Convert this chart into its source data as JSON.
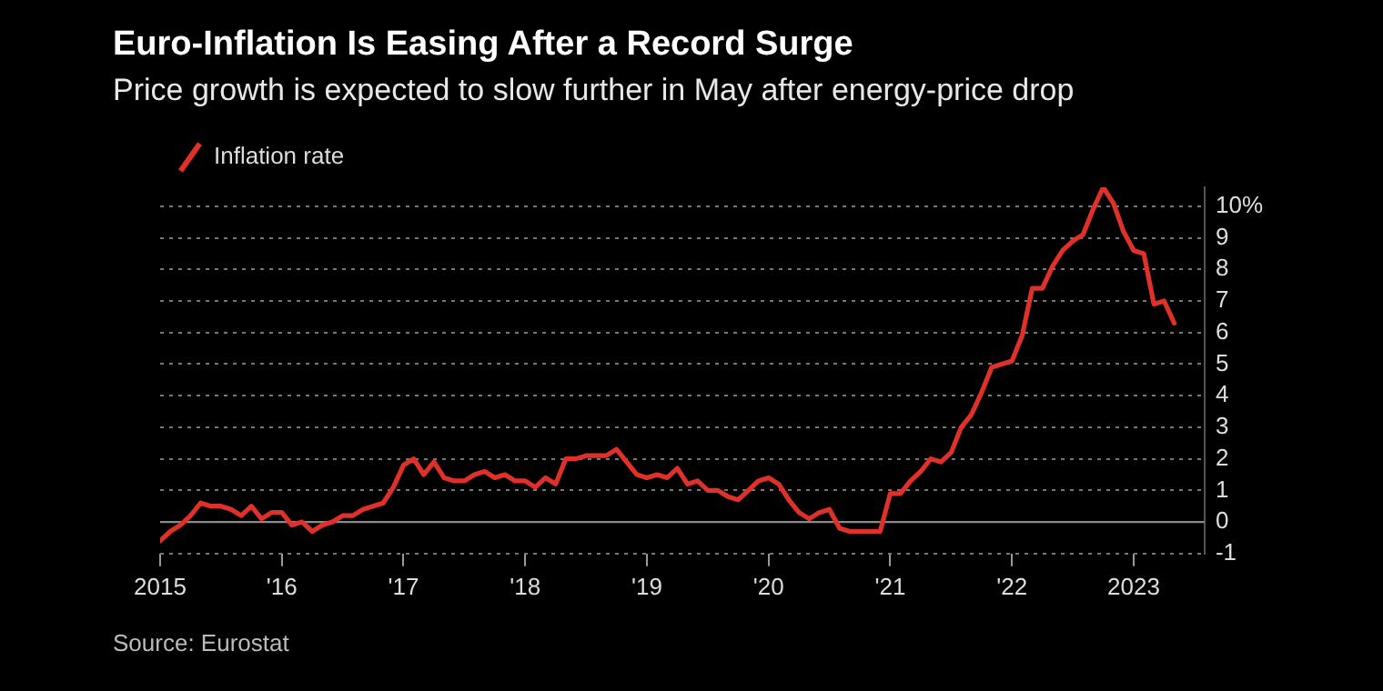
{
  "chart_data": {
    "type": "line",
    "title": "Euro-Inflation Is Easing After a Record Surge",
    "subtitle": "Price growth is expected to slow further in May after energy-price drop",
    "annotations": [
      "Source: Eurostat"
    ],
    "x": [
      "2015-01",
      "2015-02",
      "2015-03",
      "2015-04",
      "2015-05",
      "2015-06",
      "2015-07",
      "2015-08",
      "2015-09",
      "2015-10",
      "2015-11",
      "2015-12",
      "2016-01",
      "2016-02",
      "2016-03",
      "2016-04",
      "2016-05",
      "2016-06",
      "2016-07",
      "2016-08",
      "2016-09",
      "2016-10",
      "2016-11",
      "2016-12",
      "2017-01",
      "2017-02",
      "2017-03",
      "2017-04",
      "2017-05",
      "2017-06",
      "2017-07",
      "2017-08",
      "2017-09",
      "2017-10",
      "2017-11",
      "2017-12",
      "2018-01",
      "2018-02",
      "2018-03",
      "2018-04",
      "2018-05",
      "2018-06",
      "2018-07",
      "2018-08",
      "2018-09",
      "2018-10",
      "2018-11",
      "2018-12",
      "2019-01",
      "2019-02",
      "2019-03",
      "2019-04",
      "2019-05",
      "2019-06",
      "2019-07",
      "2019-08",
      "2019-09",
      "2019-10",
      "2019-11",
      "2019-12",
      "2020-01",
      "2020-02",
      "2020-03",
      "2020-04",
      "2020-05",
      "2020-06",
      "2020-07",
      "2020-08",
      "2020-09",
      "2020-10",
      "2020-11",
      "2020-12",
      "2021-01",
      "2021-02",
      "2021-03",
      "2021-04",
      "2021-05",
      "2021-06",
      "2021-07",
      "2021-08",
      "2021-09",
      "2021-10",
      "2021-11",
      "2021-12",
      "2022-01",
      "2022-02",
      "2022-03",
      "2022-04",
      "2022-05",
      "2022-06",
      "2022-07",
      "2022-08",
      "2022-09",
      "2022-10",
      "2022-11",
      "2022-12",
      "2023-01",
      "2023-02",
      "2023-03",
      "2023-04",
      "2023-05"
    ],
    "series": [
      {
        "name": "Inflation rate",
        "color": "#e0302a",
        "values": [
          -0.6,
          -0.3,
          -0.1,
          0.2,
          0.6,
          0.5,
          0.5,
          0.4,
          0.2,
          0.5,
          0.1,
          0.3,
          0.3,
          -0.1,
          0.0,
          -0.3,
          -0.1,
          0.0,
          0.2,
          0.2,
          0.4,
          0.5,
          0.6,
          1.1,
          1.8,
          2.0,
          1.5,
          1.9,
          1.4,
          1.3,
          1.3,
          1.5,
          1.6,
          1.4,
          1.5,
          1.3,
          1.3,
          1.1,
          1.4,
          1.2,
          2.0,
          2.0,
          2.1,
          2.1,
          2.1,
          2.3,
          1.9,
          1.5,
          1.4,
          1.5,
          1.4,
          1.7,
          1.2,
          1.3,
          1.0,
          1.0,
          0.8,
          0.7,
          1.0,
          1.3,
          1.4,
          1.2,
          0.7,
          0.3,
          0.1,
          0.3,
          0.4,
          -0.2,
          -0.3,
          -0.3,
          -0.3,
          -0.3,
          0.9,
          0.9,
          1.3,
          1.6,
          2.0,
          1.9,
          2.2,
          3.0,
          3.4,
          4.1,
          4.9,
          5.0,
          5.1,
          5.9,
          7.4,
          7.4,
          8.1,
          8.6,
          8.9,
          9.1,
          9.9,
          10.6,
          10.1,
          9.2,
          8.6,
          8.5,
          6.9,
          7.0,
          6.3
        ]
      }
    ],
    "xlim": [
      "2015-01",
      "2023-08"
    ],
    "xticks": [
      {
        "value": "2015",
        "label": "2015"
      },
      {
        "value": "2016",
        "label": "'16"
      },
      {
        "value": "2017",
        "label": "'17"
      },
      {
        "value": "2018",
        "label": "'18"
      },
      {
        "value": "2019",
        "label": "'19"
      },
      {
        "value": "2020",
        "label": "'20"
      },
      {
        "value": "2021",
        "label": "'21"
      },
      {
        "value": "2022",
        "label": "'22"
      },
      {
        "value": "2023",
        "label": "2023"
      }
    ],
    "ylim": [
      -1,
      10.6
    ],
    "yticks": [
      -1,
      0,
      1,
      2,
      3,
      4,
      5,
      6,
      7,
      8,
      9,
      {
        "value": 10,
        "label": "10%"
      }
    ],
    "grid": "y",
    "legend": "top left",
    "line_style": "solid",
    "marker": "none"
  }
}
